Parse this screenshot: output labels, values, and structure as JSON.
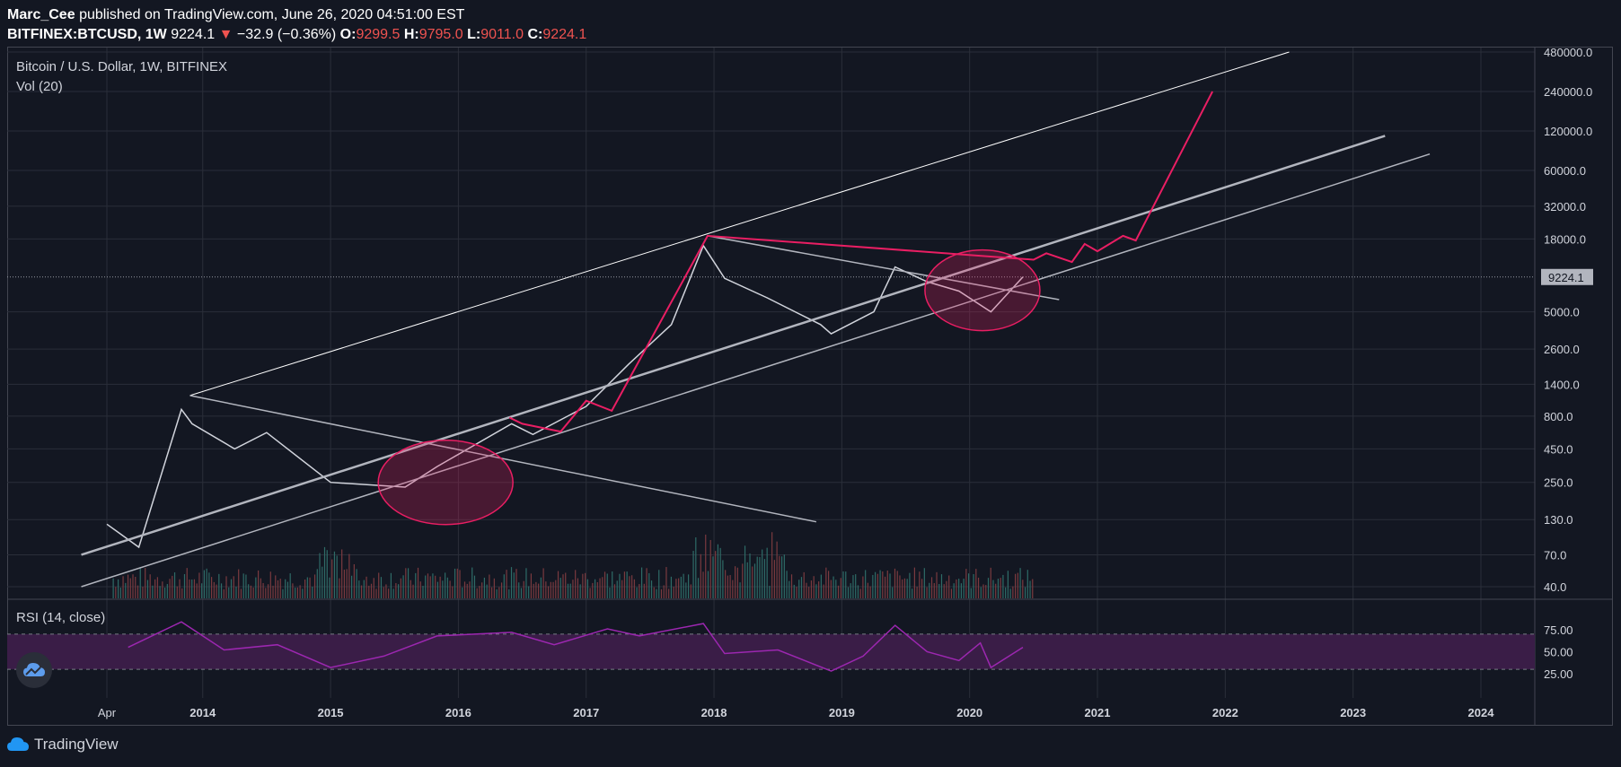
{
  "header": {
    "author": "Marc_Cee",
    "published_text": "published on TradingView.com, June 26, 2020 04:51:00 EST",
    "symbol": "BITFINEX:BTCUSD, 1W",
    "last": "9224.1",
    "change_arrow": "▼",
    "change": "−32.9 (−0.36%)",
    "o_label": "O:",
    "o_value": "9299.5",
    "h_label": "H:",
    "h_value": "9795.0",
    "l_label": "L:",
    "l_value": "9011.0",
    "c_label": "C:",
    "c_value": "9224.1"
  },
  "legend": {
    "main": "Bitcoin / U.S. Dollar, 1W, BITFINEX",
    "vol": "Vol (20)",
    "rsi": "RSI (14, close)"
  },
  "price_label": "9224.1",
  "footer": {
    "brand": "TradingView"
  },
  "colors": {
    "background": "#131722",
    "grid": "#2a2e39",
    "annotation": "#e91e63",
    "rsi_line": "#9c27b0",
    "rsi_band": "#3a1d47",
    "trendline": "#b2b5be"
  },
  "chart_data": [
    {
      "type": "line",
      "title": "Bitcoin / U.S. Dollar, 1W, BITFINEX",
      "y_scale": "log",
      "y_ticks": [
        "480000.0",
        "240000.0",
        "120000.0",
        "60000.0",
        "32000.0",
        "18000.0",
        "9224.1",
        "5000.0",
        "2600.0",
        "1400.0",
        "800.0",
        "450.0",
        "250.0",
        "130.0",
        "70.0",
        "40.0"
      ],
      "x_ticks": [
        "Apr",
        "2014",
        "2015",
        "2016",
        "2017",
        "2018",
        "2019",
        "2020",
        "2021",
        "2022",
        "2023",
        "2024"
      ],
      "series": [
        {
          "values_note": "weekly close, approximate",
          "x": [
            "2013-04",
            "2013-07",
            "2013-11",
            "2013-12",
            "2014-04",
            "2014-07",
            "2015-01",
            "2015-08",
            "2015-11",
            "2016-06",
            "2016-08",
            "2017-01",
            "2017-05",
            "2017-09",
            "2017-12",
            "2018-02",
            "2018-06",
            "2018-11",
            "2018-12",
            "2019-04",
            "2019-06",
            "2019-09",
            "2019-12",
            "2020-03",
            "2020-06"
          ],
          "values": [
            120,
            80,
            900,
            700,
            450,
            600,
            250,
            230,
            330,
            700,
            580,
            950,
            2000,
            4000,
            16000,
            9000,
            6400,
            4000,
            3400,
            5000,
            11000,
            8500,
            7200,
            5000,
            9224.1
          ]
        }
      ]
    },
    {
      "type": "line",
      "title": "RSI (14, close)",
      "y_ticks": [
        "75.00",
        "50.00",
        "25.00"
      ],
      "ylim": [
        25,
        85
      ],
      "series": [
        {
          "x": [
            "2013-06",
            "2013-11",
            "2014-03",
            "2014-08",
            "2015-01",
            "2015-06",
            "2015-11",
            "2016-06",
            "2016-10",
            "2017-03",
            "2017-06",
            "2017-12",
            "2018-02",
            "2018-07",
            "2018-12",
            "2019-03",
            "2019-06",
            "2019-09",
            "2019-12",
            "2020-02",
            "2020-03",
            "2020-06"
          ],
          "values": [
            55,
            84,
            52,
            58,
            32,
            45,
            68,
            72,
            58,
            76,
            68,
            82,
            48,
            52,
            28,
            45,
            80,
            50,
            40,
            60,
            32,
            55
          ]
        }
      ]
    }
  ]
}
